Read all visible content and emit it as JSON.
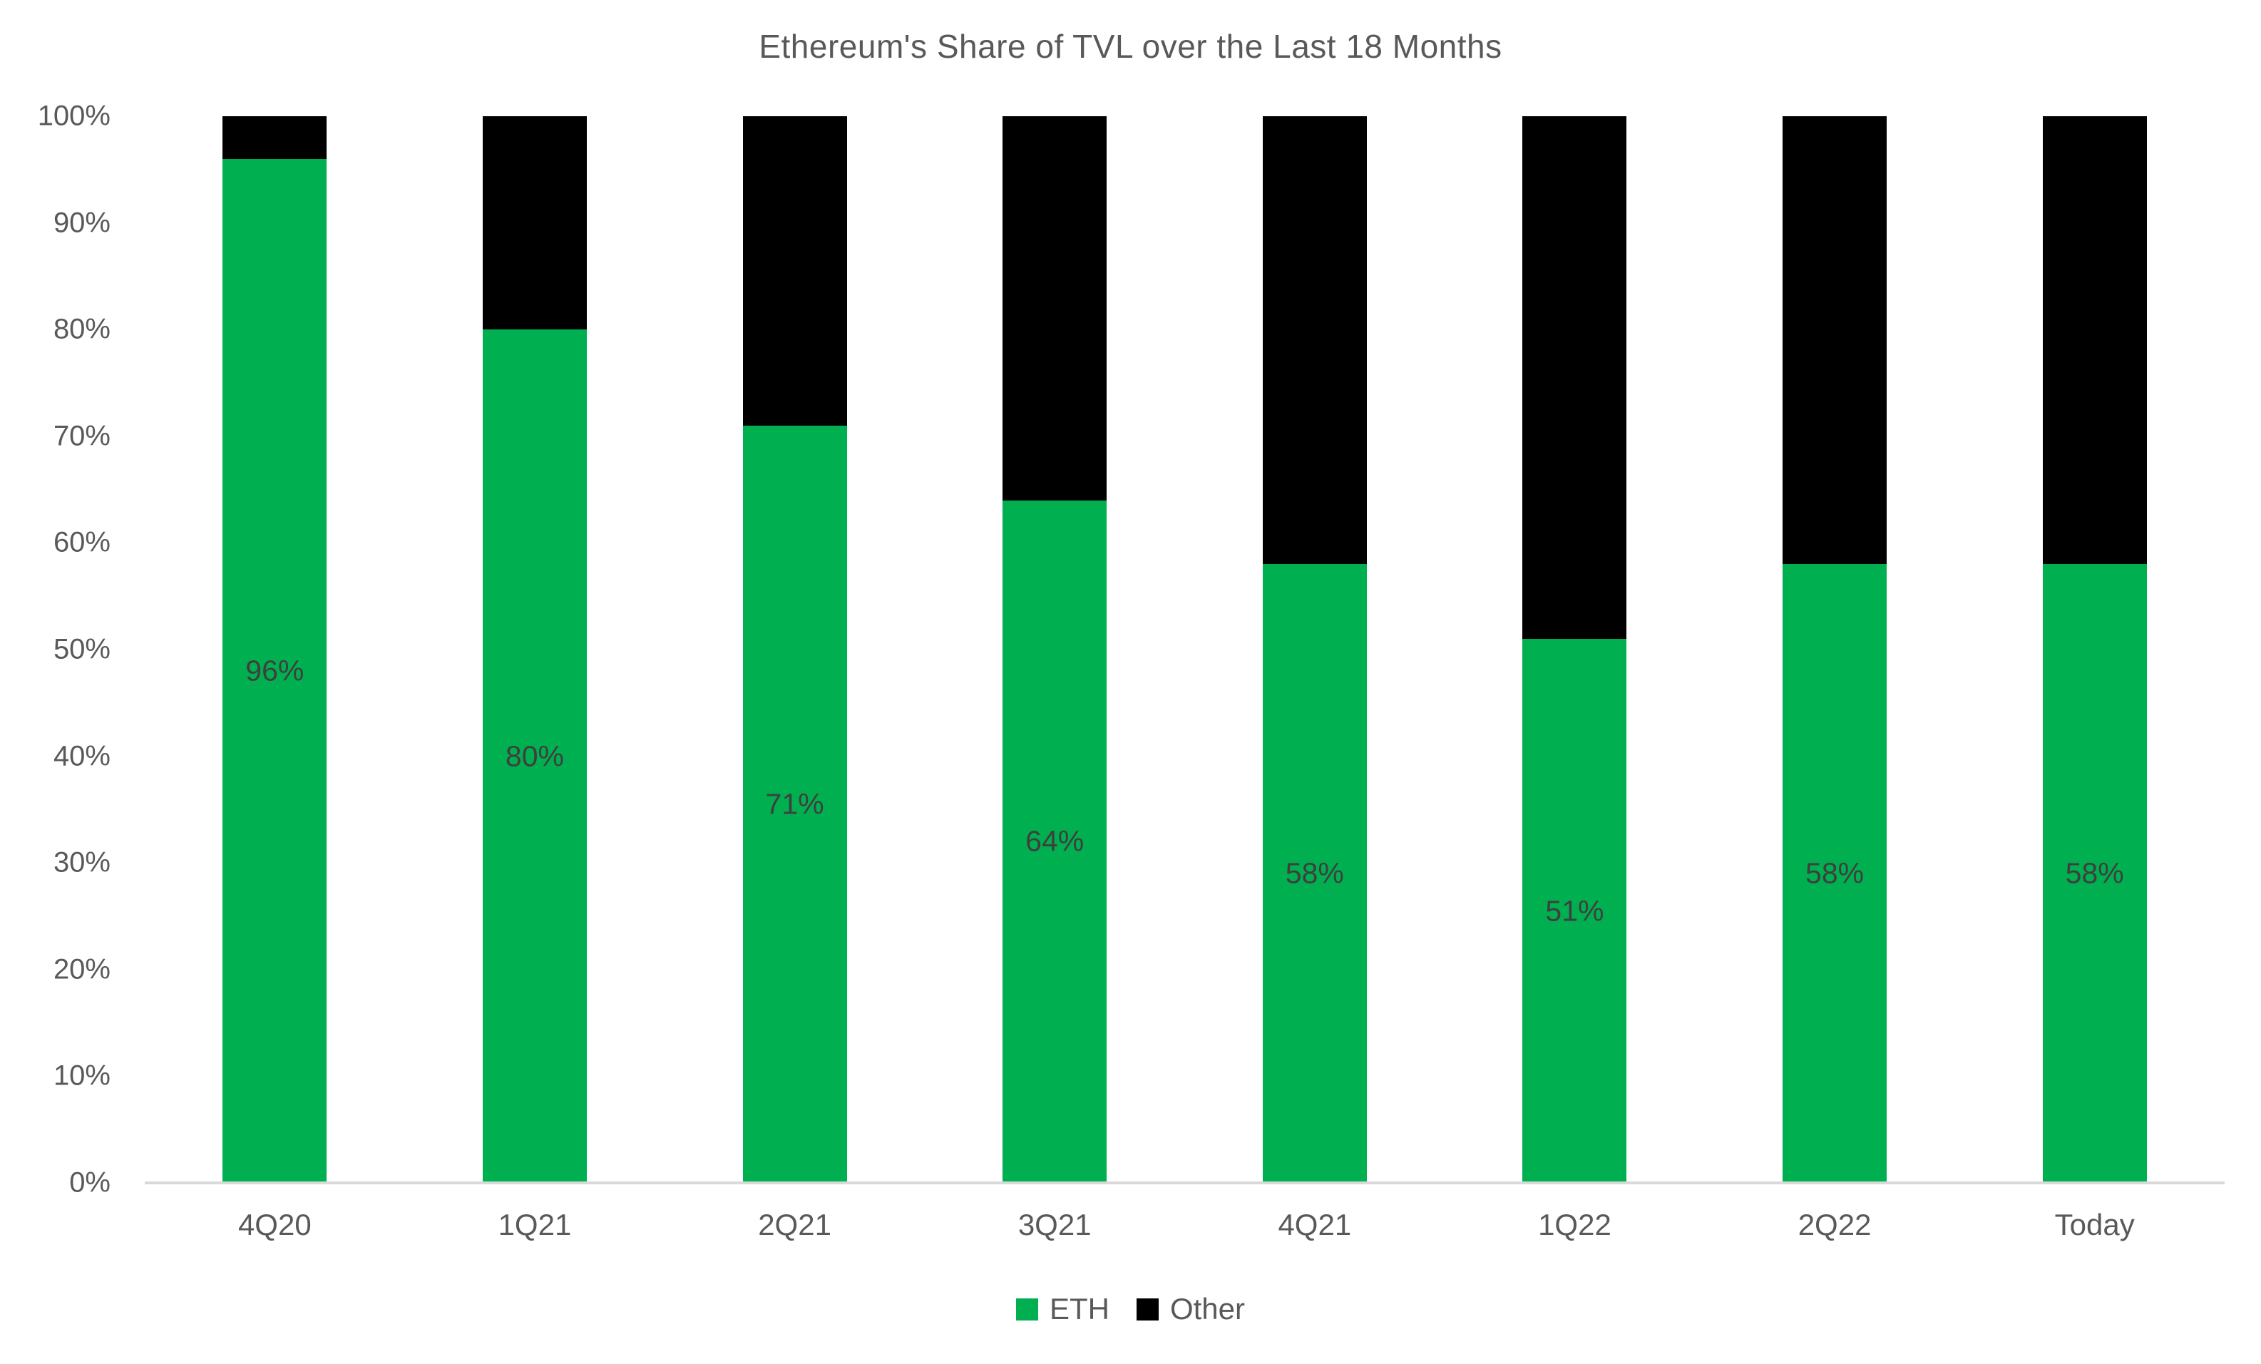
{
  "chart_data": {
    "type": "bar",
    "stacked": true,
    "title": "Ethereum's Share of TVL over the Last 18 Months",
    "categories": [
      "4Q20",
      "1Q21",
      "2Q21",
      "3Q21",
      "4Q21",
      "1Q22",
      "2Q22",
      "Today"
    ],
    "series": [
      {
        "name": "ETH",
        "color": "#00B050",
        "values": [
          96,
          80,
          71,
          64,
          58,
          51,
          58,
          58
        ]
      },
      {
        "name": "Other",
        "color": "#000000",
        "values": [
          4,
          20,
          29,
          36,
          42,
          49,
          42,
          42
        ]
      }
    ],
    "data_labels": {
      "series": "ETH",
      "labels": [
        "96%",
        "80%",
        "71%",
        "64%",
        "58%",
        "51%",
        "58%",
        "58%"
      ]
    },
    "y_axis": {
      "min": 0,
      "max": 100,
      "tick_step": 10,
      "ticks": [
        "0%",
        "10%",
        "20%",
        "30%",
        "40%",
        "50%",
        "60%",
        "70%",
        "80%",
        "90%",
        "100%"
      ]
    },
    "grid": false,
    "legend": {
      "position": "bottom",
      "entries": [
        {
          "label": "ETH",
          "color": "#00B050"
        },
        {
          "label": "Other",
          "color": "#000000"
        }
      ]
    },
    "colors": {
      "axis_line": "#D9D9D9",
      "axis_text": "#595959",
      "title_text": "#595959",
      "data_label_text": "#3F3F3F",
      "background": "#FFFFFF"
    }
  }
}
